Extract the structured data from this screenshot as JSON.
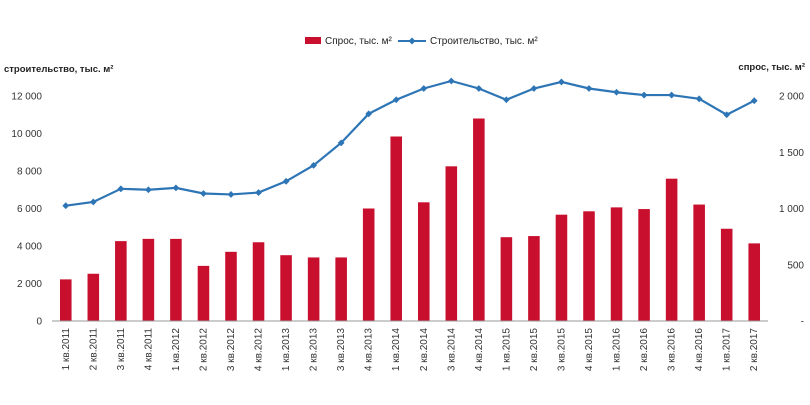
{
  "chart_data": {
    "type": "bar+line",
    "categories": [
      "1 кв.2011",
      "2 кв.2011",
      "3 кв.2011",
      "4 кв.2011",
      "1 кв.2012",
      "2 кв.2012",
      "3 кв.2012",
      "4 кв.2012",
      "1 кв.2013",
      "2 кв.2013",
      "3 кв.2013",
      "4 кв.2013",
      "1 кв.2014",
      "2 кв.2014",
      "3 кв.2014",
      "4 кв.2014",
      "1 кв.2015",
      "2 кв.2015",
      "3 кв.2015",
      "4 кв.2015",
      "1 кв.2016",
      "2 кв.2016",
      "3 кв.2016",
      "4 кв.2016",
      "1 кв.2017",
      "2 кв.2017"
    ],
    "series": [
      {
        "name": "Спрос, тыс. м²",
        "type": "bar",
        "axis": "right",
        "color": "#c8102e",
        "values": [
          370,
          420,
          710,
          730,
          730,
          490,
          615,
          700,
          585,
          565,
          565,
          1000,
          1640,
          1055,
          1375,
          1800,
          745,
          755,
          945,
          975,
          1010,
          995,
          1265,
          1035,
          820,
          690
        ]
      },
      {
        "name": "Строительство, тыс. м²",
        "type": "line",
        "axis": "left",
        "color": "#2e75b6",
        "values": [
          6150,
          6350,
          7050,
          7000,
          7100,
          6800,
          6750,
          6850,
          7450,
          8300,
          9500,
          11050,
          11800,
          12400,
          12800,
          12400,
          11800,
          12400,
          12750,
          12400,
          12200,
          12050,
          12050,
          11850,
          11000,
          11750
        ]
      }
    ],
    "y_left": {
      "label": "строительство, тыс. м²",
      "ylim": [
        0,
        12000
      ],
      "ticks": [
        0,
        2000,
        4000,
        6000,
        8000,
        10000,
        12000
      ],
      "tick_labels": [
        "0",
        "2 000",
        "4 000",
        "6 000",
        "8 000",
        "10 000",
        "12 000"
      ]
    },
    "y_right": {
      "label": "спрос, тыс. м²",
      "ylim": [
        0,
        2000
      ],
      "ticks": [
        0,
        500,
        1000,
        1500,
        2000
      ],
      "tick_labels": [
        "-",
        "500",
        "1 000",
        "1 500",
        "2 000"
      ]
    },
    "legend": "top-center",
    "grid": false
  }
}
